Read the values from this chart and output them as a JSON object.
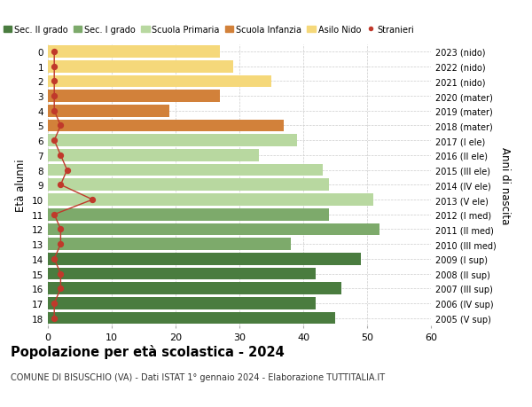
{
  "ages": [
    18,
    17,
    16,
    15,
    14,
    13,
    12,
    11,
    10,
    9,
    8,
    7,
    6,
    5,
    4,
    3,
    2,
    1,
    0
  ],
  "right_labels": [
    "2005 (V sup)",
    "2006 (IV sup)",
    "2007 (III sup)",
    "2008 (II sup)",
    "2009 (I sup)",
    "2010 (III med)",
    "2011 (II med)",
    "2012 (I med)",
    "2013 (V ele)",
    "2014 (IV ele)",
    "2015 (III ele)",
    "2016 (II ele)",
    "2017 (I ele)",
    "2018 (mater)",
    "2019 (mater)",
    "2020 (mater)",
    "2021 (nido)",
    "2022 (nido)",
    "2023 (nido)"
  ],
  "bar_values": [
    45,
    42,
    46,
    42,
    49,
    38,
    52,
    44,
    51,
    44,
    43,
    33,
    39,
    37,
    19,
    27,
    35,
    29,
    27
  ],
  "bar_colors": [
    "#4a7c3f",
    "#4a7c3f",
    "#4a7c3f",
    "#4a7c3f",
    "#4a7c3f",
    "#7daa6b",
    "#7daa6b",
    "#7daa6b",
    "#b8d8a0",
    "#b8d8a0",
    "#b8d8a0",
    "#b8d8a0",
    "#b8d8a0",
    "#d2813a",
    "#d2813a",
    "#d2813a",
    "#f5d87a",
    "#f5d87a",
    "#f5d87a"
  ],
  "stranieri_values": [
    1,
    1,
    2,
    2,
    1,
    2,
    2,
    1,
    7,
    2,
    3,
    2,
    1,
    2,
    1,
    1,
    1,
    1,
    1
  ],
  "title": "Popolazione per età scolastica - 2024",
  "subtitle": "COMUNE DI BISUSCHIO (VA) - Dati ISTAT 1° gennaio 2024 - Elaborazione TUTTITALIA.IT",
  "ylabel": "Età alunni",
  "right_ylabel": "Anni di nascita",
  "xlim": [
    0,
    60
  ],
  "legend_labels": [
    "Sec. II grado",
    "Sec. I grado",
    "Scuola Primaria",
    "Scuola Infanzia",
    "Asilo Nido",
    "Stranieri"
  ],
  "legend_colors": [
    "#4a7c3f",
    "#7daa6b",
    "#b8d8a0",
    "#d2813a",
    "#f5d87a",
    "#c0392b"
  ],
  "stranieri_color": "#c0392b",
  "grid_color": "#cccccc",
  "bg_color": "#ffffff"
}
